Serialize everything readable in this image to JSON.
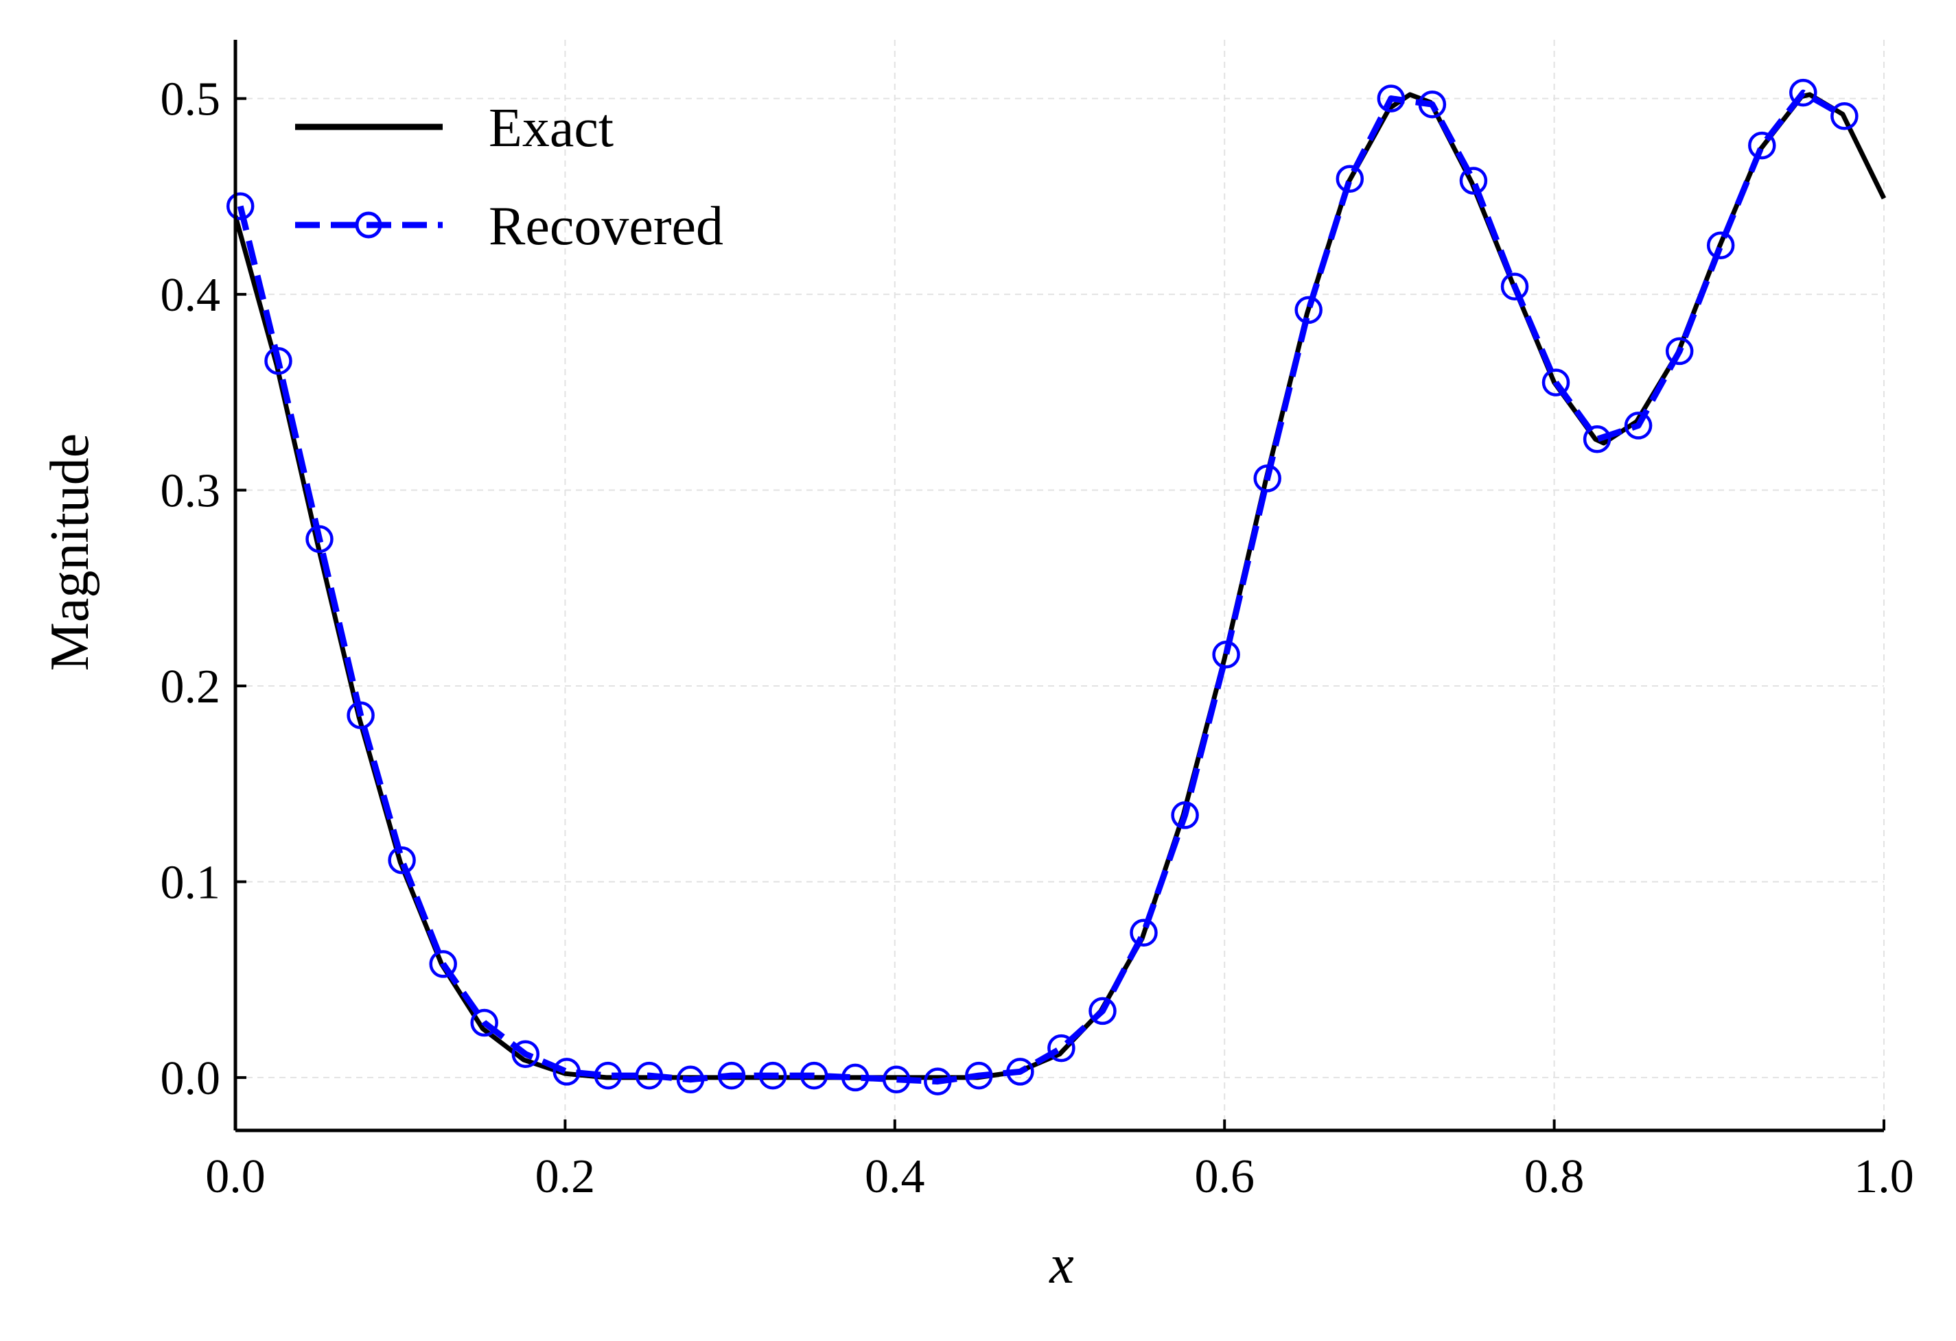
{
  "chart_data": {
    "type": "line",
    "title": "",
    "xlabel": "x",
    "ylabel": "Magnitude",
    "xlim": [
      0.0,
      1.0
    ],
    "ylim": [
      -0.027,
      0.53
    ],
    "xticks": [
      0.0,
      0.2,
      0.4,
      0.6,
      0.8,
      1.0
    ],
    "xtick_labels": [
      "0.0",
      "0.2",
      "0.4",
      "0.6",
      "0.8",
      "1.0"
    ],
    "yticks": [
      0.0,
      0.1,
      0.2,
      0.3,
      0.4,
      0.5
    ],
    "ytick_labels": [
      "0.0",
      "0.1",
      "0.2",
      "0.3",
      "0.4",
      "0.5"
    ],
    "grid": true,
    "legend_position": "upper-left",
    "series": [
      {
        "name": "Exact",
        "color": "#000000",
        "style": "solid",
        "marker": "none",
        "x": [
          0.0,
          0.025,
          0.05,
          0.075,
          0.1,
          0.125,
          0.15,
          0.175,
          0.2,
          0.225,
          0.25,
          0.275,
          0.3,
          0.325,
          0.35,
          0.375,
          0.4,
          0.425,
          0.45,
          0.475,
          0.5,
          0.525,
          0.55,
          0.575,
          0.6,
          0.625,
          0.65,
          0.675,
          0.7,
          0.7125,
          0.725,
          0.75,
          0.775,
          0.8,
          0.825,
          0.83,
          0.85,
          0.875,
          0.9,
          0.925,
          0.95,
          0.955,
          0.975,
          1.0
        ],
        "y": [
          0.44,
          0.364,
          0.272,
          0.184,
          0.11,
          0.058,
          0.025,
          0.009,
          0.002,
          0.0,
          0.0,
          0.0,
          0.0,
          0.0,
          0.0,
          0.0,
          0.0,
          0.0,
          0.0,
          0.003,
          0.012,
          0.034,
          0.071,
          0.134,
          0.214,
          0.305,
          0.39,
          0.457,
          0.495,
          0.502,
          0.498,
          0.457,
          0.405,
          0.355,
          0.326,
          0.324,
          0.335,
          0.37,
          0.424,
          0.474,
          0.501,
          0.502,
          0.492,
          0.449
        ]
      },
      {
        "name": "Recovered",
        "color": "#0000ff",
        "style": "dashed",
        "marker": "circle-open",
        "x": [
          0.003,
          0.026,
          0.051,
          0.076,
          0.101,
          0.126,
          0.151,
          0.176,
          0.201,
          0.226,
          0.251,
          0.276,
          0.301,
          0.326,
          0.351,
          0.376,
          0.401,
          0.426,
          0.451,
          0.476,
          0.501,
          0.526,
          0.551,
          0.576,
          0.601,
          0.626,
          0.651,
          0.676,
          0.701,
          0.726,
          0.751,
          0.776,
          0.801,
          0.826,
          0.851,
          0.876,
          0.901,
          0.926,
          0.951,
          0.976
        ],
        "y": [
          0.445,
          0.366,
          0.275,
          0.185,
          0.111,
          0.058,
          0.028,
          0.012,
          0.003,
          0.001,
          0.001,
          -0.001,
          0.001,
          0.001,
          0.001,
          0.0,
          -0.001,
          -0.002,
          0.001,
          0.003,
          0.015,
          0.034,
          0.074,
          0.134,
          0.216,
          0.306,
          0.392,
          0.459,
          0.5,
          0.497,
          0.458,
          0.404,
          0.355,
          0.326,
          0.333,
          0.371,
          0.425,
          0.476,
          0.503,
          0.491
        ]
      }
    ]
  }
}
